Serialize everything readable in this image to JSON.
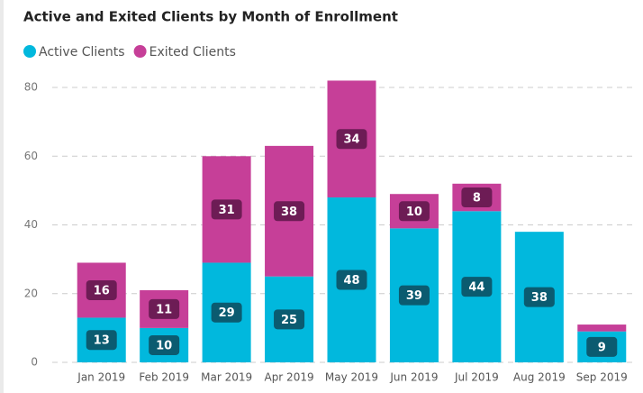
{
  "chart_data": {
    "type": "stacked_bar",
    "title": "Active and Exited Clients by Month of Enrollment",
    "categories": [
      "Jan 2019",
      "Feb 2019",
      "Mar 2019",
      "Apr 2019",
      "May 2019",
      "Jun 2019",
      "Jul 2019",
      "Aug 2019",
      "Sep 2019"
    ],
    "series": [
      {
        "name": "Active Clients",
        "color": "#01b8dd",
        "values": [
          13,
          10,
          29,
          25,
          48,
          39,
          44,
          38,
          9
        ]
      },
      {
        "name": "Exited Clients",
        "color": "#c63f98",
        "values": [
          16,
          11,
          31,
          38,
          34,
          10,
          8,
          null,
          2
        ]
      }
    ],
    "ylim": [
      0,
      85
    ],
    "yticks": [
      0,
      20,
      40,
      60,
      80
    ],
    "grid": true,
    "legend": "top-left"
  }
}
